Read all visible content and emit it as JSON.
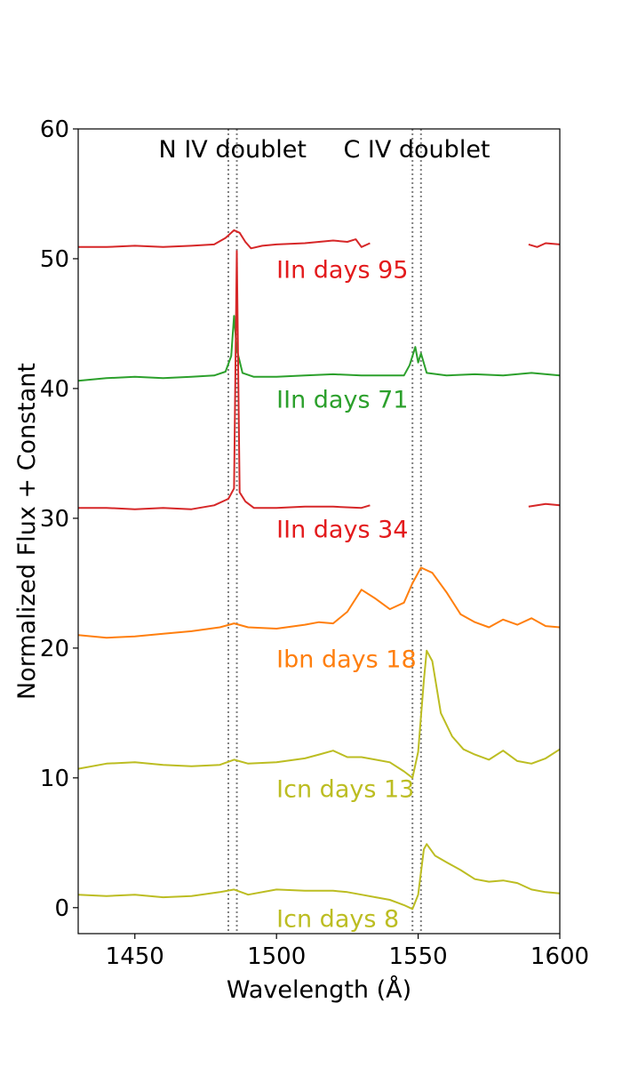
{
  "chart_data": {
    "type": "line",
    "xlabel": "Wavelength (Å)",
    "ylabel": "Normalized Flux + Constant",
    "xlim": [
      1430,
      1600
    ],
    "ylim": [
      -2,
      60
    ],
    "xticks": [
      1450,
      1500,
      1550,
      1600
    ],
    "xtick_labels": [
      "1450",
      "1500",
      "1550",
      "1600"
    ],
    "yticks": [
      0,
      10,
      20,
      30,
      40,
      50,
      60
    ],
    "ytick_labels": [
      "0",
      "10",
      "20",
      "30",
      "40",
      "50",
      "60"
    ],
    "grid": false,
    "vlines": [
      1483,
      1486,
      1548,
      1551
    ],
    "annotations": [
      {
        "text": "N IV doublet",
        "x": 1484.5,
        "y": 58.5
      },
      {
        "text": "C IV doublet",
        "x": 1549.5,
        "y": 58.5
      }
    ],
    "series": [
      {
        "name": "IIn days 95",
        "color": "#d62728",
        "label_color": "#e31a1c",
        "label_pos": [
          1500,
          49.2
        ],
        "points": [
          [
            1430,
            50.9
          ],
          [
            1440,
            50.9
          ],
          [
            1450,
            51.0
          ],
          [
            1460,
            50.9
          ],
          [
            1470,
            51.0
          ],
          [
            1478,
            51.1
          ],
          [
            1482,
            51.6
          ],
          [
            1485,
            52.2
          ],
          [
            1487,
            52.0
          ],
          [
            1489,
            51.3
          ],
          [
            1491,
            50.8
          ],
          [
            1495,
            51.0
          ],
          [
            1500,
            51.1
          ],
          [
            1510,
            51.2
          ],
          [
            1520,
            51.4
          ],
          [
            1525,
            51.3
          ],
          [
            1528,
            51.5
          ],
          [
            1530,
            50.9
          ],
          [
            1533,
            51.2
          ],
          null,
          [
            1589,
            51.1
          ],
          [
            1592,
            50.9
          ],
          [
            1595,
            51.2
          ],
          [
            1600,
            51.1
          ]
        ]
      },
      {
        "name": "IIn days 71",
        "color": "#2ca02c",
        "label_color": "#2ca02c",
        "label_pos": [
          1500,
          39.2
        ],
        "points": [
          [
            1430,
            40.6
          ],
          [
            1440,
            40.8
          ],
          [
            1450,
            40.9
          ],
          [
            1460,
            40.8
          ],
          [
            1470,
            40.9
          ],
          [
            1478,
            41.0
          ],
          [
            1482,
            41.3
          ],
          [
            1484,
            42.5
          ],
          [
            1485,
            45.6
          ],
          [
            1486,
            43.0
          ],
          [
            1488,
            41.2
          ],
          [
            1492,
            40.9
          ],
          [
            1500,
            40.9
          ],
          [
            1510,
            41.0
          ],
          [
            1520,
            41.1
          ],
          [
            1530,
            41.0
          ],
          [
            1540,
            41.0
          ],
          [
            1545,
            41.0
          ],
          [
            1547,
            41.8
          ],
          [
            1549,
            43.2
          ],
          [
            1550,
            42.0
          ],
          [
            1551,
            42.7
          ],
          [
            1553,
            41.2
          ],
          [
            1560,
            41.0
          ],
          [
            1570,
            41.1
          ],
          [
            1580,
            41.0
          ],
          [
            1590,
            41.2
          ],
          [
            1600,
            41.0
          ]
        ]
      },
      {
        "name": "IIn days 34",
        "color": "#d62728",
        "label_color": "#e31a1c",
        "label_pos": [
          1500,
          29.2
        ],
        "points": [
          [
            1430,
            30.8
          ],
          [
            1440,
            30.8
          ],
          [
            1450,
            30.7
          ],
          [
            1460,
            30.8
          ],
          [
            1470,
            30.7
          ],
          [
            1478,
            31.0
          ],
          [
            1483,
            31.5
          ],
          [
            1485,
            32.3
          ],
          [
            1486,
            50.6
          ],
          [
            1487,
            32.0
          ],
          [
            1489,
            31.3
          ],
          [
            1492,
            30.8
          ],
          [
            1500,
            30.8
          ],
          [
            1510,
            30.9
          ],
          [
            1520,
            30.9
          ],
          [
            1530,
            30.8
          ],
          [
            1533,
            31.0
          ],
          null,
          [
            1589,
            30.9
          ],
          [
            1592,
            31.0
          ],
          [
            1595,
            31.1
          ],
          [
            1600,
            31.0
          ]
        ]
      },
      {
        "name": "Ibn days 18",
        "color": "#ff7f0e",
        "label_color": "#ff7f0e",
        "label_pos": [
          1500,
          19.2
        ],
        "points": [
          [
            1430,
            21.0
          ],
          [
            1440,
            20.8
          ],
          [
            1450,
            20.9
          ],
          [
            1460,
            21.1
          ],
          [
            1470,
            21.3
          ],
          [
            1480,
            21.6
          ],
          [
            1485,
            21.9
          ],
          [
            1490,
            21.6
          ],
          [
            1500,
            21.5
          ],
          [
            1510,
            21.8
          ],
          [
            1515,
            22.0
          ],
          [
            1520,
            21.9
          ],
          [
            1525,
            22.8
          ],
          [
            1530,
            24.5
          ],
          [
            1535,
            23.8
          ],
          [
            1540,
            23.0
          ],
          [
            1545,
            23.5
          ],
          [
            1548,
            25.0
          ],
          [
            1551,
            26.2
          ],
          [
            1555,
            25.8
          ],
          [
            1560,
            24.3
          ],
          [
            1565,
            22.6
          ],
          [
            1570,
            22.0
          ],
          [
            1575,
            21.6
          ],
          [
            1580,
            22.2
          ],
          [
            1585,
            21.8
          ],
          [
            1590,
            22.3
          ],
          [
            1595,
            21.7
          ],
          [
            1600,
            21.6
          ]
        ]
      },
      {
        "name": "Icn days 13",
        "color": "#bcbd22",
        "label_color": "#bcbd22",
        "label_pos": [
          1500,
          9.2
        ],
        "points": [
          [
            1430,
            10.7
          ],
          [
            1440,
            11.1
          ],
          [
            1450,
            11.2
          ],
          [
            1460,
            11.0
          ],
          [
            1470,
            10.9
          ],
          [
            1480,
            11.0
          ],
          [
            1485,
            11.4
          ],
          [
            1490,
            11.1
          ],
          [
            1500,
            11.2
          ],
          [
            1510,
            11.5
          ],
          [
            1515,
            11.8
          ],
          [
            1520,
            12.1
          ],
          [
            1525,
            11.6
          ],
          [
            1530,
            11.6
          ],
          [
            1535,
            11.4
          ],
          [
            1540,
            11.2
          ],
          [
            1545,
            10.5
          ],
          [
            1548,
            10.0
          ],
          [
            1550,
            12.0
          ],
          [
            1552,
            17.5
          ],
          [
            1553,
            19.8
          ],
          [
            1555,
            19.0
          ],
          [
            1558,
            15.0
          ],
          [
            1562,
            13.2
          ],
          [
            1566,
            12.2
          ],
          [
            1570,
            11.8
          ],
          [
            1575,
            11.4
          ],
          [
            1580,
            12.1
          ],
          [
            1585,
            11.3
          ],
          [
            1590,
            11.1
          ],
          [
            1595,
            11.5
          ],
          [
            1600,
            12.2
          ]
        ]
      },
      {
        "name": "Icn days 8",
        "color": "#bcbd22",
        "label_color": "#bcbd22",
        "label_pos": [
          1500,
          -0.8
        ],
        "points": [
          [
            1430,
            1.0
          ],
          [
            1440,
            0.9
          ],
          [
            1450,
            1.0
          ],
          [
            1460,
            0.8
          ],
          [
            1470,
            0.9
          ],
          [
            1480,
            1.2
          ],
          [
            1485,
            1.4
          ],
          [
            1490,
            1.0
          ],
          [
            1500,
            1.4
          ],
          [
            1510,
            1.3
          ],
          [
            1520,
            1.3
          ],
          [
            1525,
            1.2
          ],
          [
            1530,
            1.0
          ],
          [
            1535,
            0.8
          ],
          [
            1540,
            0.6
          ],
          [
            1545,
            0.2
          ],
          [
            1548,
            -0.1
          ],
          [
            1550,
            1.0
          ],
          [
            1552,
            4.5
          ],
          [
            1553,
            4.9
          ],
          [
            1556,
            4.0
          ],
          [
            1560,
            3.5
          ],
          [
            1565,
            2.9
          ],
          [
            1570,
            2.2
          ],
          [
            1575,
            2.0
          ],
          [
            1580,
            2.1
          ],
          [
            1585,
            1.9
          ],
          [
            1590,
            1.4
          ],
          [
            1595,
            1.2
          ],
          [
            1600,
            1.1
          ]
        ]
      }
    ]
  }
}
